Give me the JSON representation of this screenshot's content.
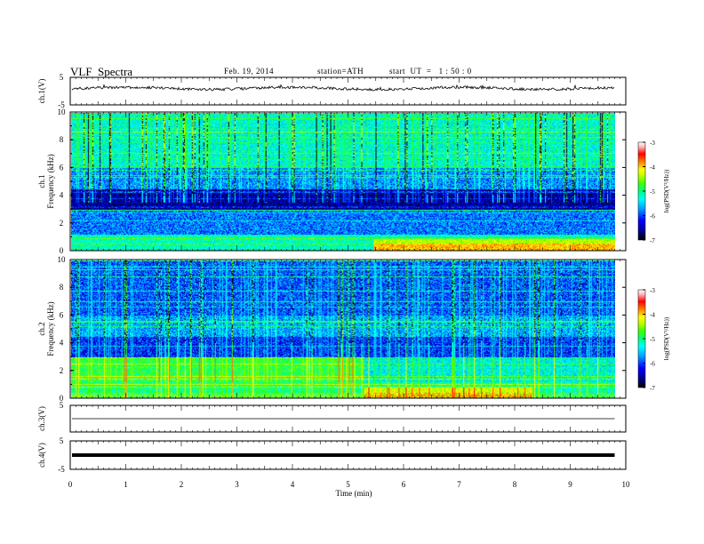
{
  "header": {
    "title": "VLF  Spectra",
    "date": "Feb. 19, 2014",
    "station": "station=ATH",
    "start": "start  UT  =   1 : 50 : 0"
  },
  "chart_data": [
    {
      "type": "line",
      "panel": "ch1",
      "ylabel": "ch.1(V)",
      "ylim": [
        -5,
        5
      ],
      "yticks": [
        "5",
        "-5"
      ],
      "xlim": [
        0,
        10
      ],
      "description_series": "noisy waveform centered near 1 V",
      "series": [
        {
          "values_level": 1.0
        }
      ]
    },
    {
      "type": "heatmap",
      "panel": "ch1-spectrogram",
      "ylabel": "ch.1",
      "ylabel2": "Frequency (kHz)",
      "ylim": [
        0,
        10
      ],
      "yticks": [
        "0",
        "2",
        "4",
        "6",
        "8",
        "10"
      ],
      "xlim": [
        0,
        9.8
      ],
      "colorbar": {
        "label": "log(PSD(V²/Hz))",
        "range": [
          -7,
          -3
        ],
        "ticks": [
          "-3",
          "-4",
          "-5",
          "-6",
          "-7"
        ]
      }
    },
    {
      "type": "heatmap",
      "panel": "ch2-spectrogram",
      "ylabel": "ch.2",
      "ylabel2": "Frequency (kHz)",
      "ylim": [
        0,
        10
      ],
      "yticks": [
        "0",
        "2",
        "4",
        "6",
        "8",
        "10"
      ],
      "xlim": [
        0,
        9.8
      ],
      "colorbar": {
        "label": "log(PSD(V²/Hz))",
        "range": [
          -7,
          -3
        ],
        "ticks": [
          "-3",
          "-4",
          "-5",
          "-6",
          "-7"
        ]
      }
    },
    {
      "type": "line",
      "panel": "ch3",
      "ylabel": "ch.3(V)",
      "ylim": [
        -5,
        5
      ],
      "yticks": [
        "5"
      ],
      "xlim": [
        0,
        10
      ],
      "series": [
        {
          "values_level": 0.0
        }
      ]
    },
    {
      "type": "line",
      "panel": "ch4",
      "ylabel": "ch.4(V)",
      "ylim": [
        -5,
        5
      ],
      "yticks": [
        "5",
        "-5"
      ],
      "xlim": [
        0,
        10
      ],
      "series": [
        {
          "values_level": 0.0
        }
      ]
    }
  ],
  "xaxis": {
    "label": "Time  (min)",
    "ticks": [
      "0",
      "1",
      "2",
      "3",
      "4",
      "5",
      "6",
      "7",
      "8",
      "9",
      "10"
    ]
  },
  "colors": {
    "colormap": [
      "#000000",
      "#000080",
      "#0000ff",
      "#00a0ff",
      "#00ffff",
      "#00ff80",
      "#40ff00",
      "#c0ff00",
      "#ffff00",
      "#ff8000",
      "#ff0000",
      "#ffffff"
    ]
  }
}
